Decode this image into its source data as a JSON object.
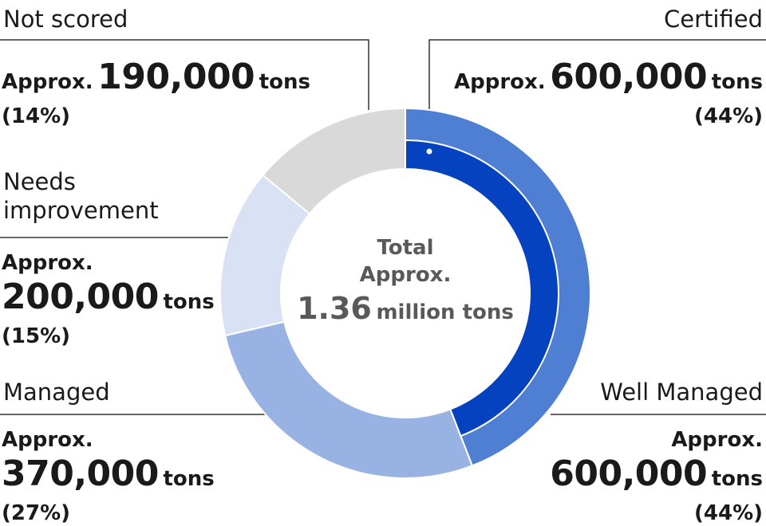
{
  "chart_data": {
    "type": "pie",
    "variant": "donut",
    "center": {
      "line1": "Total",
      "line2": "Approx.",
      "number": "1.36",
      "unit": "million tons"
    },
    "outer_ring": [
      {
        "name": "Well Managed",
        "value": 600000,
        "percent": 44,
        "color": "#4f7fd3"
      },
      {
        "name": "Managed",
        "value": 370000,
        "percent": 27,
        "color": "#97b2e3"
      },
      {
        "name": "Needs improvement",
        "value": 200000,
        "percent": 15,
        "color": "#d8e2f4"
      },
      {
        "name": "Not scored",
        "value": 190000,
        "percent": 14,
        "color": "#d9d9d9"
      }
    ],
    "inner_ring": [
      {
        "name": "Certified",
        "value": 600000,
        "percent": 44,
        "color": "#0542c0"
      }
    ],
    "labels": {
      "not_scored": {
        "category": "Not scored",
        "prefix": "Approx.",
        "number": "190,000",
        "unit": "tons",
        "percent": "(14%)"
      },
      "needs_improvement": {
        "category_line1": "Needs",
        "category_line2": "improvement",
        "prefix": "Approx.",
        "number": "200,000",
        "unit": "tons",
        "percent": "(15%)"
      },
      "managed": {
        "category": "Managed",
        "prefix": "Approx.",
        "number": "370,000",
        "unit": "tons",
        "percent": "(27%)"
      },
      "certified": {
        "category": "Certified",
        "prefix": "Approx.",
        "number": "600,000",
        "unit": "tons",
        "percent": "(44%)"
      },
      "well_managed": {
        "category": "Well Managed",
        "prefix": "Approx.",
        "number": "600,000",
        "unit": "tons",
        "percent": "(44%)"
      }
    }
  }
}
